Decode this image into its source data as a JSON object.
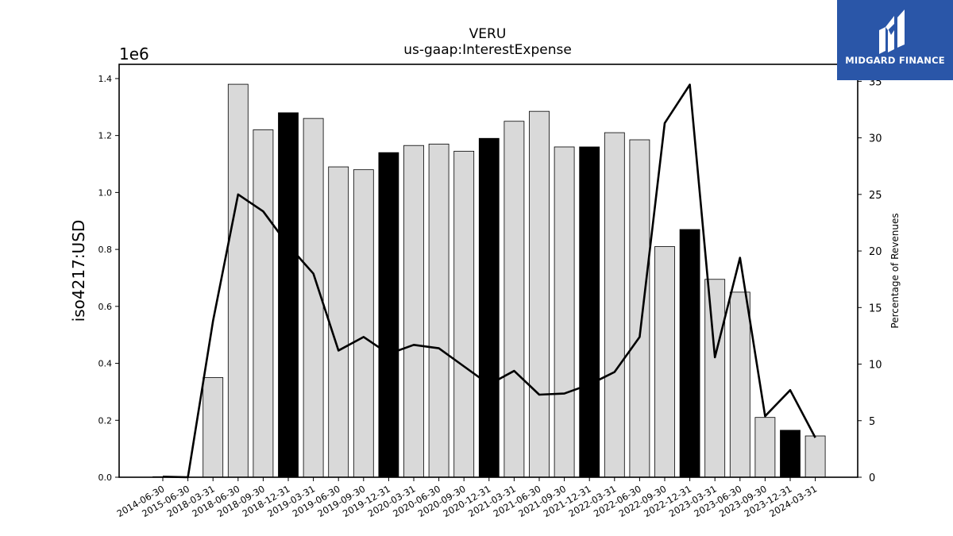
{
  "chart_data": {
    "type": "bar",
    "title": "VERU",
    "subtitle": "us-gaap:InterestExpense",
    "ylabel": "iso4217:USD",
    "y_multiplier_label": "1e6",
    "ylim": [
      0,
      1450000
    ],
    "y_ticks": [
      "0.0",
      "0.2",
      "0.4",
      "0.6",
      "0.8",
      "1.0",
      "1.2",
      "1.4"
    ],
    "y_tick_values": [
      0,
      200000,
      400000,
      600000,
      800000,
      1000000,
      1200000,
      1400000
    ],
    "y2label": "Percentage of Revenues",
    "y2lim": [
      0,
      36.5
    ],
    "y2_ticks": [
      "0",
      "5",
      "10",
      "15",
      "20",
      "25",
      "30",
      "35"
    ],
    "y2_tick_values": [
      0,
      5,
      10,
      15,
      20,
      25,
      30,
      35
    ],
    "categories": [
      "2014-06-30",
      "2015-06-30",
      "2018-03-31",
      "2018-06-30",
      "2018-09-30",
      "2018-12-31",
      "2019-03-31",
      "2019-06-30",
      "2019-09-30",
      "2019-12-31",
      "2020-03-31",
      "2020-06-30",
      "2020-09-30",
      "2020-12-31",
      "2021-03-31",
      "2021-06-30",
      "2021-09-30",
      "2021-12-31",
      "2022-03-31",
      "2022-06-30",
      "2022-09-30",
      "2022-12-31",
      "2023-03-31",
      "2023-06-30",
      "2023-09-30",
      "2023-12-31",
      "2024-03-31"
    ],
    "series": [
      {
        "values": [
          2000,
          0,
          350000,
          1380000,
          1220000,
          1280000,
          1260000,
          1090000,
          1080000,
          1140000,
          1165000,
          1170000,
          1145000,
          1190000,
          1250000,
          1285000,
          1160000,
          1160000,
          1210000,
          1185000,
          810000,
          870000,
          695000,
          650000,
          210000,
          165000,
          145000
        ],
        "bar_colors": [
          "#d9d9d9",
          "#d9d9d9",
          "#d9d9d9",
          "#d9d9d9",
          "#d9d9d9",
          "#000000",
          "#d9d9d9",
          "#d9d9d9",
          "#d9d9d9",
          "#000000",
          "#d9d9d9",
          "#d9d9d9",
          "#d9d9d9",
          "#000000",
          "#d9d9d9",
          "#d9d9d9",
          "#d9d9d9",
          "#000000",
          "#d9d9d9",
          "#d9d9d9",
          "#d9d9d9",
          "#000000",
          "#d9d9d9",
          "#d9d9d9",
          "#d9d9d9",
          "#000000",
          "#d9d9d9"
        ]
      },
      {
        "type": "line",
        "axis": "right",
        "values": [
          0.05,
          0.0,
          13.8,
          25.0,
          23.5,
          20.5,
          18.0,
          11.2,
          12.4,
          10.9,
          11.7,
          11.4,
          9.8,
          8.2,
          9.4,
          7.3,
          7.4,
          8.2,
          9.3,
          12.4,
          31.3,
          34.7,
          10.6,
          19.4,
          5.4,
          7.7,
          3.5
        ]
      }
    ],
    "grid": false,
    "legend": "none"
  },
  "logo": {
    "text": "MIDGARD FINANCE"
  }
}
